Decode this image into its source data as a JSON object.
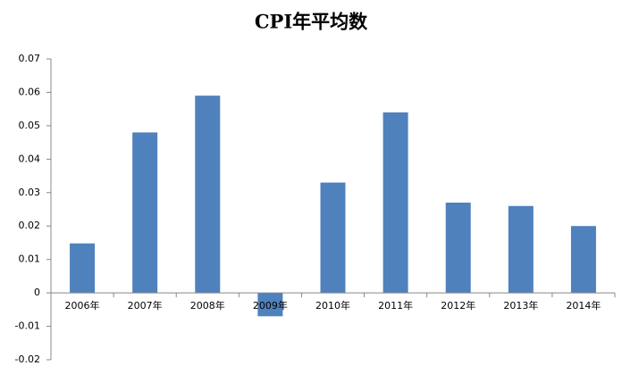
{
  "chart_data": {
    "type": "bar",
    "title": "CPI年平均数",
    "categories": [
      "2006年",
      "2007年",
      "2008年",
      "2009年",
      "2010年",
      "2011年",
      "2012年",
      "2013年",
      "2014年"
    ],
    "values": [
      0.0148,
      0.048,
      0.059,
      -0.007,
      0.033,
      0.054,
      0.027,
      0.026,
      0.02
    ],
    "color": "#4f81bd",
    "ylim": [
      -0.02,
      0.07
    ],
    "yticks": [
      -0.02,
      -0.01,
      0,
      0.01,
      0.02,
      0.03,
      0.04,
      0.05,
      0.06,
      0.07
    ],
    "grid": false
  }
}
